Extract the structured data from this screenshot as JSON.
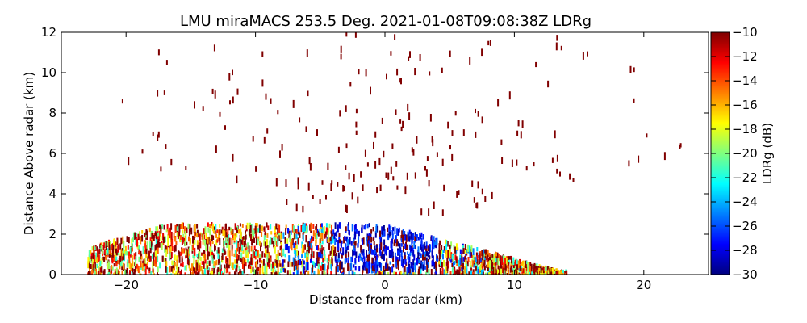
{
  "chart_data": {
    "type": "heatmap",
    "title": "LMU miraMACS 253.5 Deg. 2021-01-08T09:08:38Z  LDRg",
    "xlabel": "Distance from radar (km)",
    "ylabel": "Distance Above radar  (km)",
    "xlim": [
      -25,
      25
    ],
    "ylim": [
      0,
      12
    ],
    "x_ticks": [
      -20,
      -10,
      0,
      10,
      20
    ],
    "y_ticks": [
      0,
      2,
      4,
      6,
      8,
      10,
      12
    ],
    "colorbar": {
      "label": "LDRg (dB)",
      "range": [
        -30,
        -10
      ],
      "ticks": [
        -10,
        -12,
        -14,
        -16,
        -18,
        -20,
        -22,
        -24,
        -26,
        -28,
        -30
      ],
      "colormap": "jet"
    },
    "grid": false,
    "features": {
      "low_level_echo": {
        "description_values_km": {
          "x_min": -23,
          "x_max": 14,
          "top_height": 2.6
        },
        "dense_core_x_km": [
          -4,
          4
        ]
      },
      "scattered_high_returns_ldr_db": -10
    },
    "colors": {
      "jet_stops": [
        "#00007f",
        "#0000ff",
        "#007fff",
        "#00ffff",
        "#7fff7f",
        "#ffff00",
        "#ff7f00",
        "#ff0000",
        "#7f0000"
      ]
    }
  }
}
